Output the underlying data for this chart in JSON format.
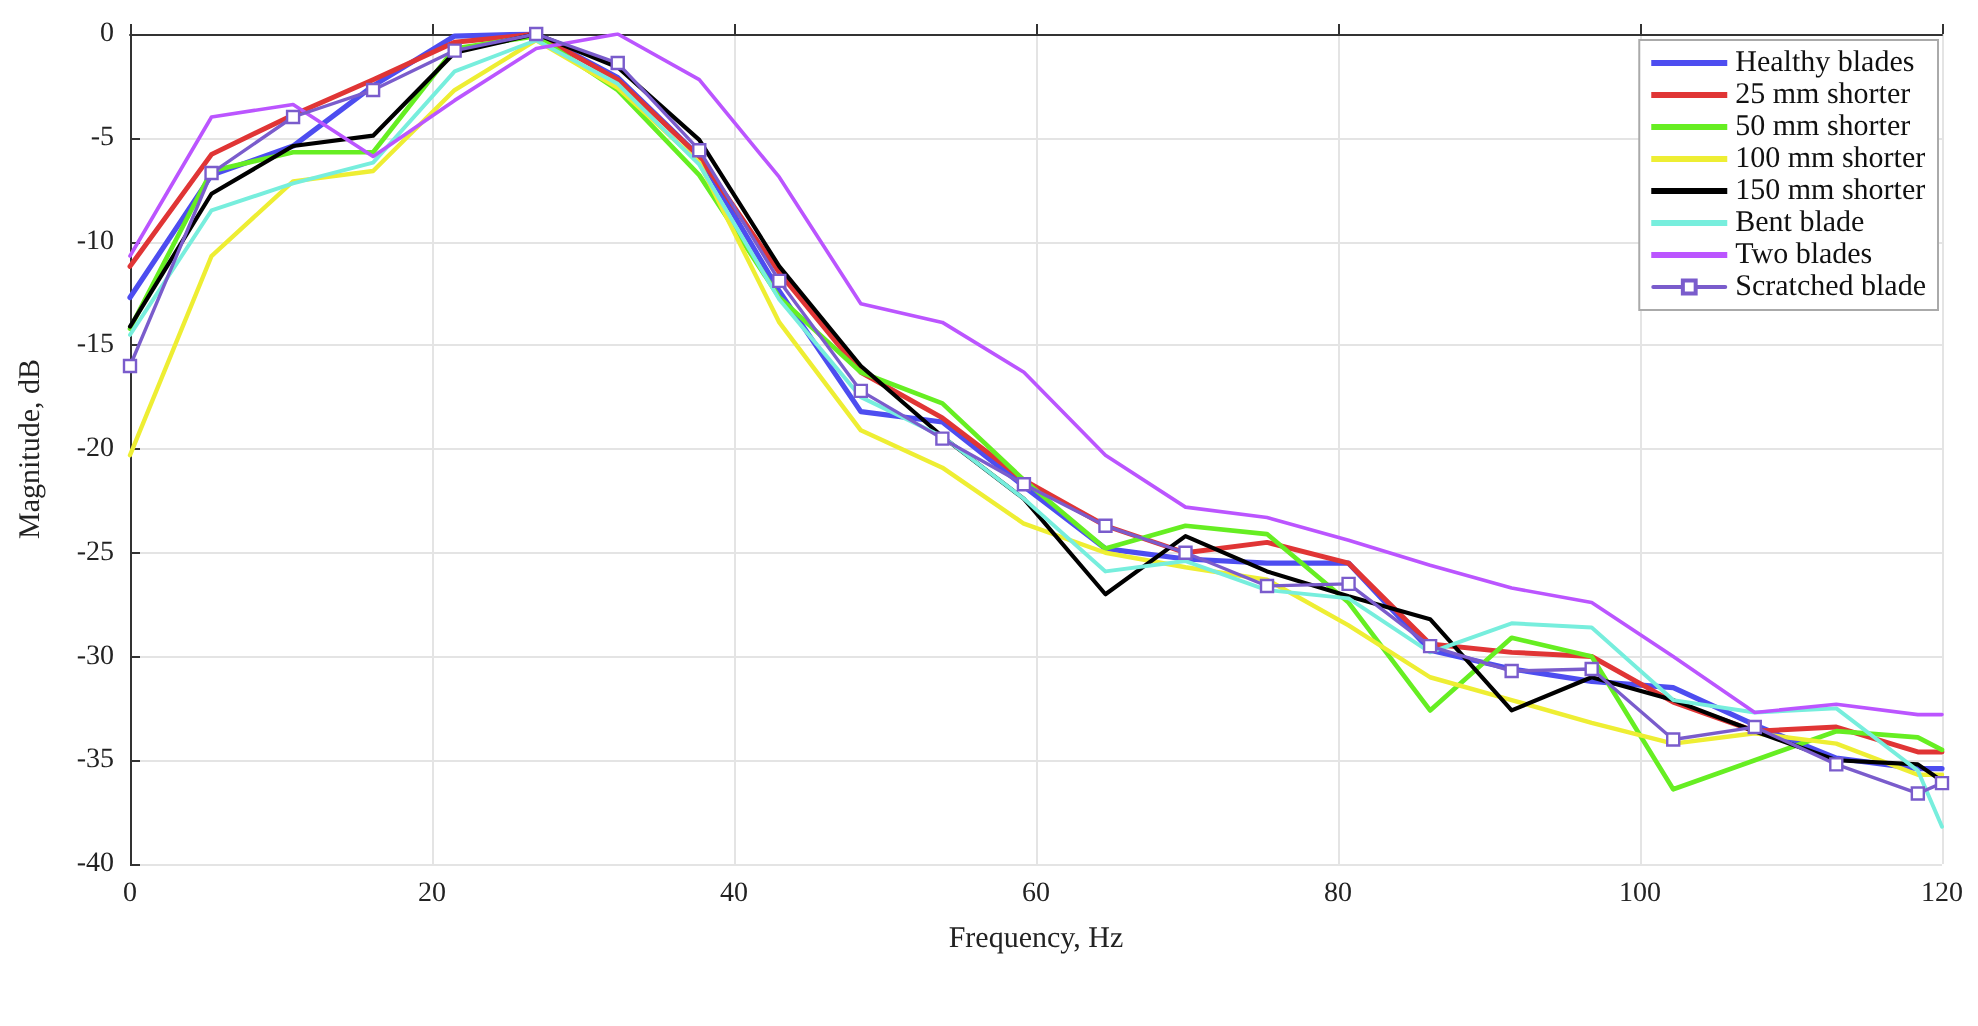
{
  "chart_data": {
    "type": "line",
    "xlabel": "Frequency, Hz",
    "ylabel": "Magnitude, dB",
    "x": [
      0,
      5.4,
      10.8,
      16.1,
      21.5,
      26.9,
      32.3,
      37.7,
      43.0,
      48.4,
      53.8,
      59.2,
      64.6,
      69.9,
      75.3,
      80.7,
      86.1,
      91.5,
      96.8,
      102.2,
      107.6,
      113.0,
      118.4,
      120
    ],
    "xlim": [
      0,
      120
    ],
    "xticks": [
      0,
      20,
      40,
      60,
      80,
      100,
      120
    ],
    "ylim": [
      -40,
      0
    ],
    "yticks": [
      -40,
      -35,
      -30,
      -25,
      -20,
      -15,
      -10,
      -5,
      0
    ],
    "grid": true,
    "legend": "top right",
    "marker": "none",
    "line_style": "solid",
    "series": [
      {
        "name": "Healthy blades",
        "color": "#4d4df0",
        "values": [
          -12.7,
          -6.8,
          -5.4,
          -2.5,
          -0.1,
          0,
          -2.1,
          -5.9,
          -12.4,
          -18.2,
          -18.7,
          -21.8,
          -24.8,
          -25.3,
          -25.5,
          -25.5,
          -29.7,
          -30.6,
          -31.2,
          -31.5,
          -33.3,
          -34.9,
          -35.4,
          -35.4
        ]
      },
      {
        "name": "25 mm shorter",
        "color": "#e03535",
        "values": [
          -11.2,
          -5.8,
          -3.9,
          -2.2,
          -0.4,
          0,
          -2.2,
          -5.9,
          -11.5,
          -16.3,
          -18.5,
          -21.5,
          -23.7,
          -25.0,
          -24.5,
          -25.5,
          -29.4,
          -29.8,
          -30.0,
          -32.2,
          -33.6,
          -33.4,
          -34.6,
          -34.6
        ]
      },
      {
        "name": "50 mm shorter",
        "color": "#66ee22",
        "values": [
          -14.2,
          -6.6,
          -5.7,
          -5.7,
          -0.7,
          -0.1,
          -2.7,
          -6.8,
          -12.7,
          -16.3,
          -17.8,
          -21.5,
          -24.8,
          -23.7,
          -24.1,
          -27.4,
          -32.6,
          -29.1,
          -30.0,
          -36.4,
          -35.0,
          -33.6,
          -33.9,
          -34.5
        ]
      },
      {
        "name": "100 mm shorter",
        "color": "#eeee33",
        "values": [
          -20.3,
          -10.7,
          -7.1,
          -6.6,
          -2.7,
          -0.3,
          -2.6,
          -6.2,
          -13.9,
          -19.1,
          -20.9,
          -23.6,
          -25.0,
          -25.7,
          -26.3,
          -28.5,
          -31.0,
          -32.1,
          -33.2,
          -34.2,
          -33.7,
          -34.2,
          -35.7,
          -35.7
        ]
      },
      {
        "name": "150 mm shorter",
        "color": "#000000",
        "values": [
          -14.1,
          -7.7,
          -5.4,
          -4.9,
          -0.9,
          0,
          -1.6,
          -5.1,
          -11.2,
          -16.0,
          -19.4,
          -22.4,
          -27.0,
          -24.2,
          -25.9,
          -27.1,
          -28.2,
          -32.6,
          -31.0,
          -32.1,
          -33.6,
          -35.0,
          -35.2,
          -36.0
        ]
      },
      {
        "name": "Bent blade",
        "color": "#77eedd",
        "values": [
          -14.5,
          -8.5,
          -7.2,
          -6.2,
          -1.8,
          -0.3,
          -2.4,
          -6.3,
          -12.8,
          -17.5,
          -19.4,
          -22.4,
          -25.9,
          -25.4,
          -26.8,
          -27.2,
          -29.8,
          -28.4,
          -28.6,
          -32.1,
          -32.7,
          -32.5,
          -35.5,
          -38.2
        ]
      },
      {
        "name": "Two blades",
        "color": "#bb55ff",
        "values": [
          -10.7,
          -4.0,
          -3.4,
          -5.9,
          -3.2,
          -0.7,
          0,
          -2.2,
          -6.9,
          -13.0,
          -13.9,
          -16.3,
          -20.3,
          -22.8,
          -23.3,
          -24.4,
          -25.6,
          -26.7,
          -27.4,
          -30.0,
          -32.7,
          -32.3,
          -32.8,
          -32.8
        ]
      },
      {
        "name": "Scratched blade",
        "color": "#7a5ccc",
        "marker": "square",
        "values": [
          -16.0,
          -6.7,
          -4.0,
          -2.7,
          -0.8,
          0,
          -1.4,
          -5.6,
          -11.9,
          -17.2,
          -19.5,
          -21.7,
          -23.7,
          -25.0,
          -26.6,
          -26.5,
          -29.5,
          -30.7,
          -30.6,
          -34.0,
          -33.4,
          -35.2,
          -36.6,
          -36.1
        ]
      }
    ]
  }
}
